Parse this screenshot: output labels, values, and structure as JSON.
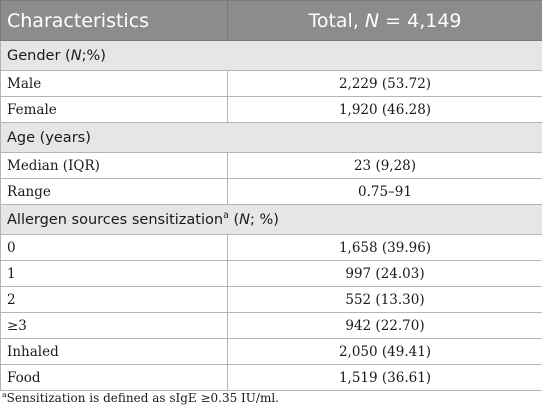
{
  "header": {
    "characteristics_label": "Characteristics",
    "total_prefix": "Total, ",
    "total_n": "N",
    "total_suffix": " = 4,149"
  },
  "sections": {
    "gender": {
      "title_prefix": "Gender (",
      "title_n": "N",
      "title_suffix": ";%)",
      "rows": [
        {
          "label": "Male",
          "value": "2,229 (53.72)"
        },
        {
          "label": "Female",
          "value": "1,920 (46.28)"
        }
      ]
    },
    "age": {
      "title": "Age (years)",
      "rows": [
        {
          "label": "Median (IQR)",
          "value": "23 (9,28)"
        },
        {
          "label": "Range",
          "value": "0.75–91"
        }
      ]
    },
    "allergen": {
      "title_prefix": "Allergen sources sensitization",
      "title_sup": "a",
      "title_mid": " (",
      "title_n": "N",
      "title_suffix": "; %)",
      "rows": [
        {
          "label": "0",
          "value": "1,658 (39.96)"
        },
        {
          "label": "1",
          "value": "997 (24.03)"
        },
        {
          "label": "2",
          "value": "552 (13.30)"
        },
        {
          "label": "≥3",
          "value": "942 (22.70)"
        },
        {
          "label": "Inhaled",
          "value": "2,050 (49.41)"
        },
        {
          "label": "Food",
          "value": "1,519 (36.61)"
        }
      ]
    }
  },
  "footnote": {
    "sup": "a",
    "text": "Sensitization is defined as sIgE ≥0.35 IU/ml."
  }
}
